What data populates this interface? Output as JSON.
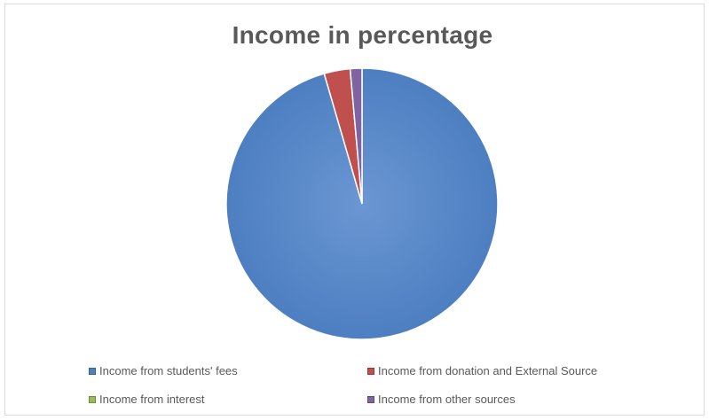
{
  "chart_data": {
    "type": "pie",
    "title": "Income in percentage",
    "categories": [
      "Income from students' fees",
      "Income from donation and External Source",
      "Income from interest",
      "Income from other sources"
    ],
    "values": [
      95.5,
      3.1,
      0.0,
      1.4
    ],
    "colors": [
      "#4f81bd",
      "#c0504d",
      "#9bbb59",
      "#8064a2"
    ],
    "legend_position": "bottom"
  }
}
